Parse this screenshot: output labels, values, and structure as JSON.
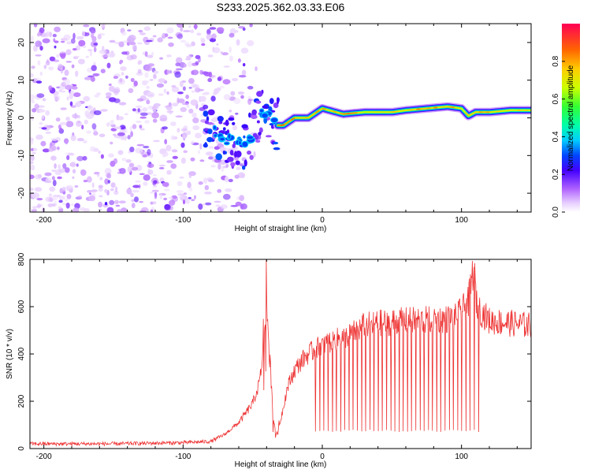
{
  "title": "S233.2025.362.03.33.E06",
  "colors": {
    "snr_line": "#ee3333",
    "axis": "#000000"
  },
  "chart_data": [
    {
      "type": "heatmap",
      "title": "S233.2025.362.03.33.E06",
      "xlabel": "Height of straight line (km)",
      "ylabel": "Frequency (Hz)",
      "xlim": [
        -210,
        150
      ],
      "ylim": [
        -25,
        25
      ],
      "xticks": [
        -200,
        -100,
        0,
        100
      ],
      "yticks": [
        -20,
        -10,
        0,
        10,
        20
      ],
      "xtick_labels": [
        "-200",
        "-100",
        "0",
        "100"
      ],
      "ytick_labels": [
        "-20",
        "-10",
        "0",
        "10",
        "20"
      ],
      "colorbar": {
        "label": "Normalized spectral amplitude",
        "range": [
          0,
          1
        ],
        "ticks": [
          0.0,
          0.2,
          0.4,
          0.6,
          0.8
        ],
        "tick_labels": [
          "0.0",
          "0.2",
          "0.4",
          "0.6",
          "0.8"
        ]
      },
      "noise_region": {
        "x_range": [
          -210,
          -75
        ],
        "amplitude": 0.1
      },
      "carrier_track": {
        "x": [
          -80,
          -70,
          -60,
          -50,
          -45,
          -40,
          -35,
          -32,
          -28,
          -20,
          -10,
          0,
          5,
          15,
          30,
          50,
          60,
          75,
          90,
          100,
          105,
          110,
          120,
          135,
          150
        ],
        "frequency": [
          -3,
          -5,
          -7,
          -5,
          0,
          2,
          -1,
          -2,
          -2,
          0,
          0,
          2.5,
          2,
          1,
          1.5,
          1.5,
          2,
          2.5,
          3,
          2.5,
          0.5,
          1.5,
          1.5,
          2,
          2
        ],
        "amplitude": [
          0.2,
          0.2,
          0.25,
          0.25,
          0.3,
          0.3,
          0.7,
          0.9,
          0.9,
          0.85,
          0.85,
          0.9,
          0.75,
          0.9,
          0.75,
          0.8,
          0.8,
          0.9,
          0.85,
          0.75,
          0.8,
          0.85,
          0.8,
          0.75,
          0.8
        ]
      }
    },
    {
      "type": "line",
      "xlabel": "Height of straight line (km)",
      "ylabel": "SNR (10 * v/v)",
      "xlim": [
        -210,
        150
      ],
      "ylim": [
        0,
        800
      ],
      "xticks": [
        -200,
        -100,
        0,
        100
      ],
      "yticks": [
        0,
        200,
        400,
        600,
        800
      ],
      "xtick_labels": [
        "-200",
        "-100",
        "0",
        "100"
      ],
      "ytick_labels": [
        "0",
        "200",
        "400",
        "600",
        "800"
      ],
      "series": [
        {
          "name": "SNR",
          "x": [
            -210,
            -150,
            -100,
            -80,
            -70,
            -60,
            -50,
            -45,
            -42,
            -40,
            -38,
            -36,
            -34,
            -32,
            -30,
            -25,
            -20,
            -15,
            -10,
            -5,
            0,
            10,
            20,
            30,
            40,
            60,
            80,
            95,
            100,
            105,
            107,
            109,
            111,
            120,
            135,
            150
          ],
          "y": [
            20,
            20,
            25,
            30,
            60,
            110,
            190,
            280,
            450,
            600,
            420,
            200,
            80,
            60,
            120,
            260,
            330,
            370,
            400,
            420,
            440,
            460,
            480,
            520,
            530,
            540,
            545,
            550,
            580,
            620,
            700,
            780,
            600,
            540,
            530,
            520
          ],
          "dropouts": {
            "x_range": [
              -5,
              115
            ],
            "spacing": 3,
            "floor": 70
          }
        }
      ]
    }
  ]
}
